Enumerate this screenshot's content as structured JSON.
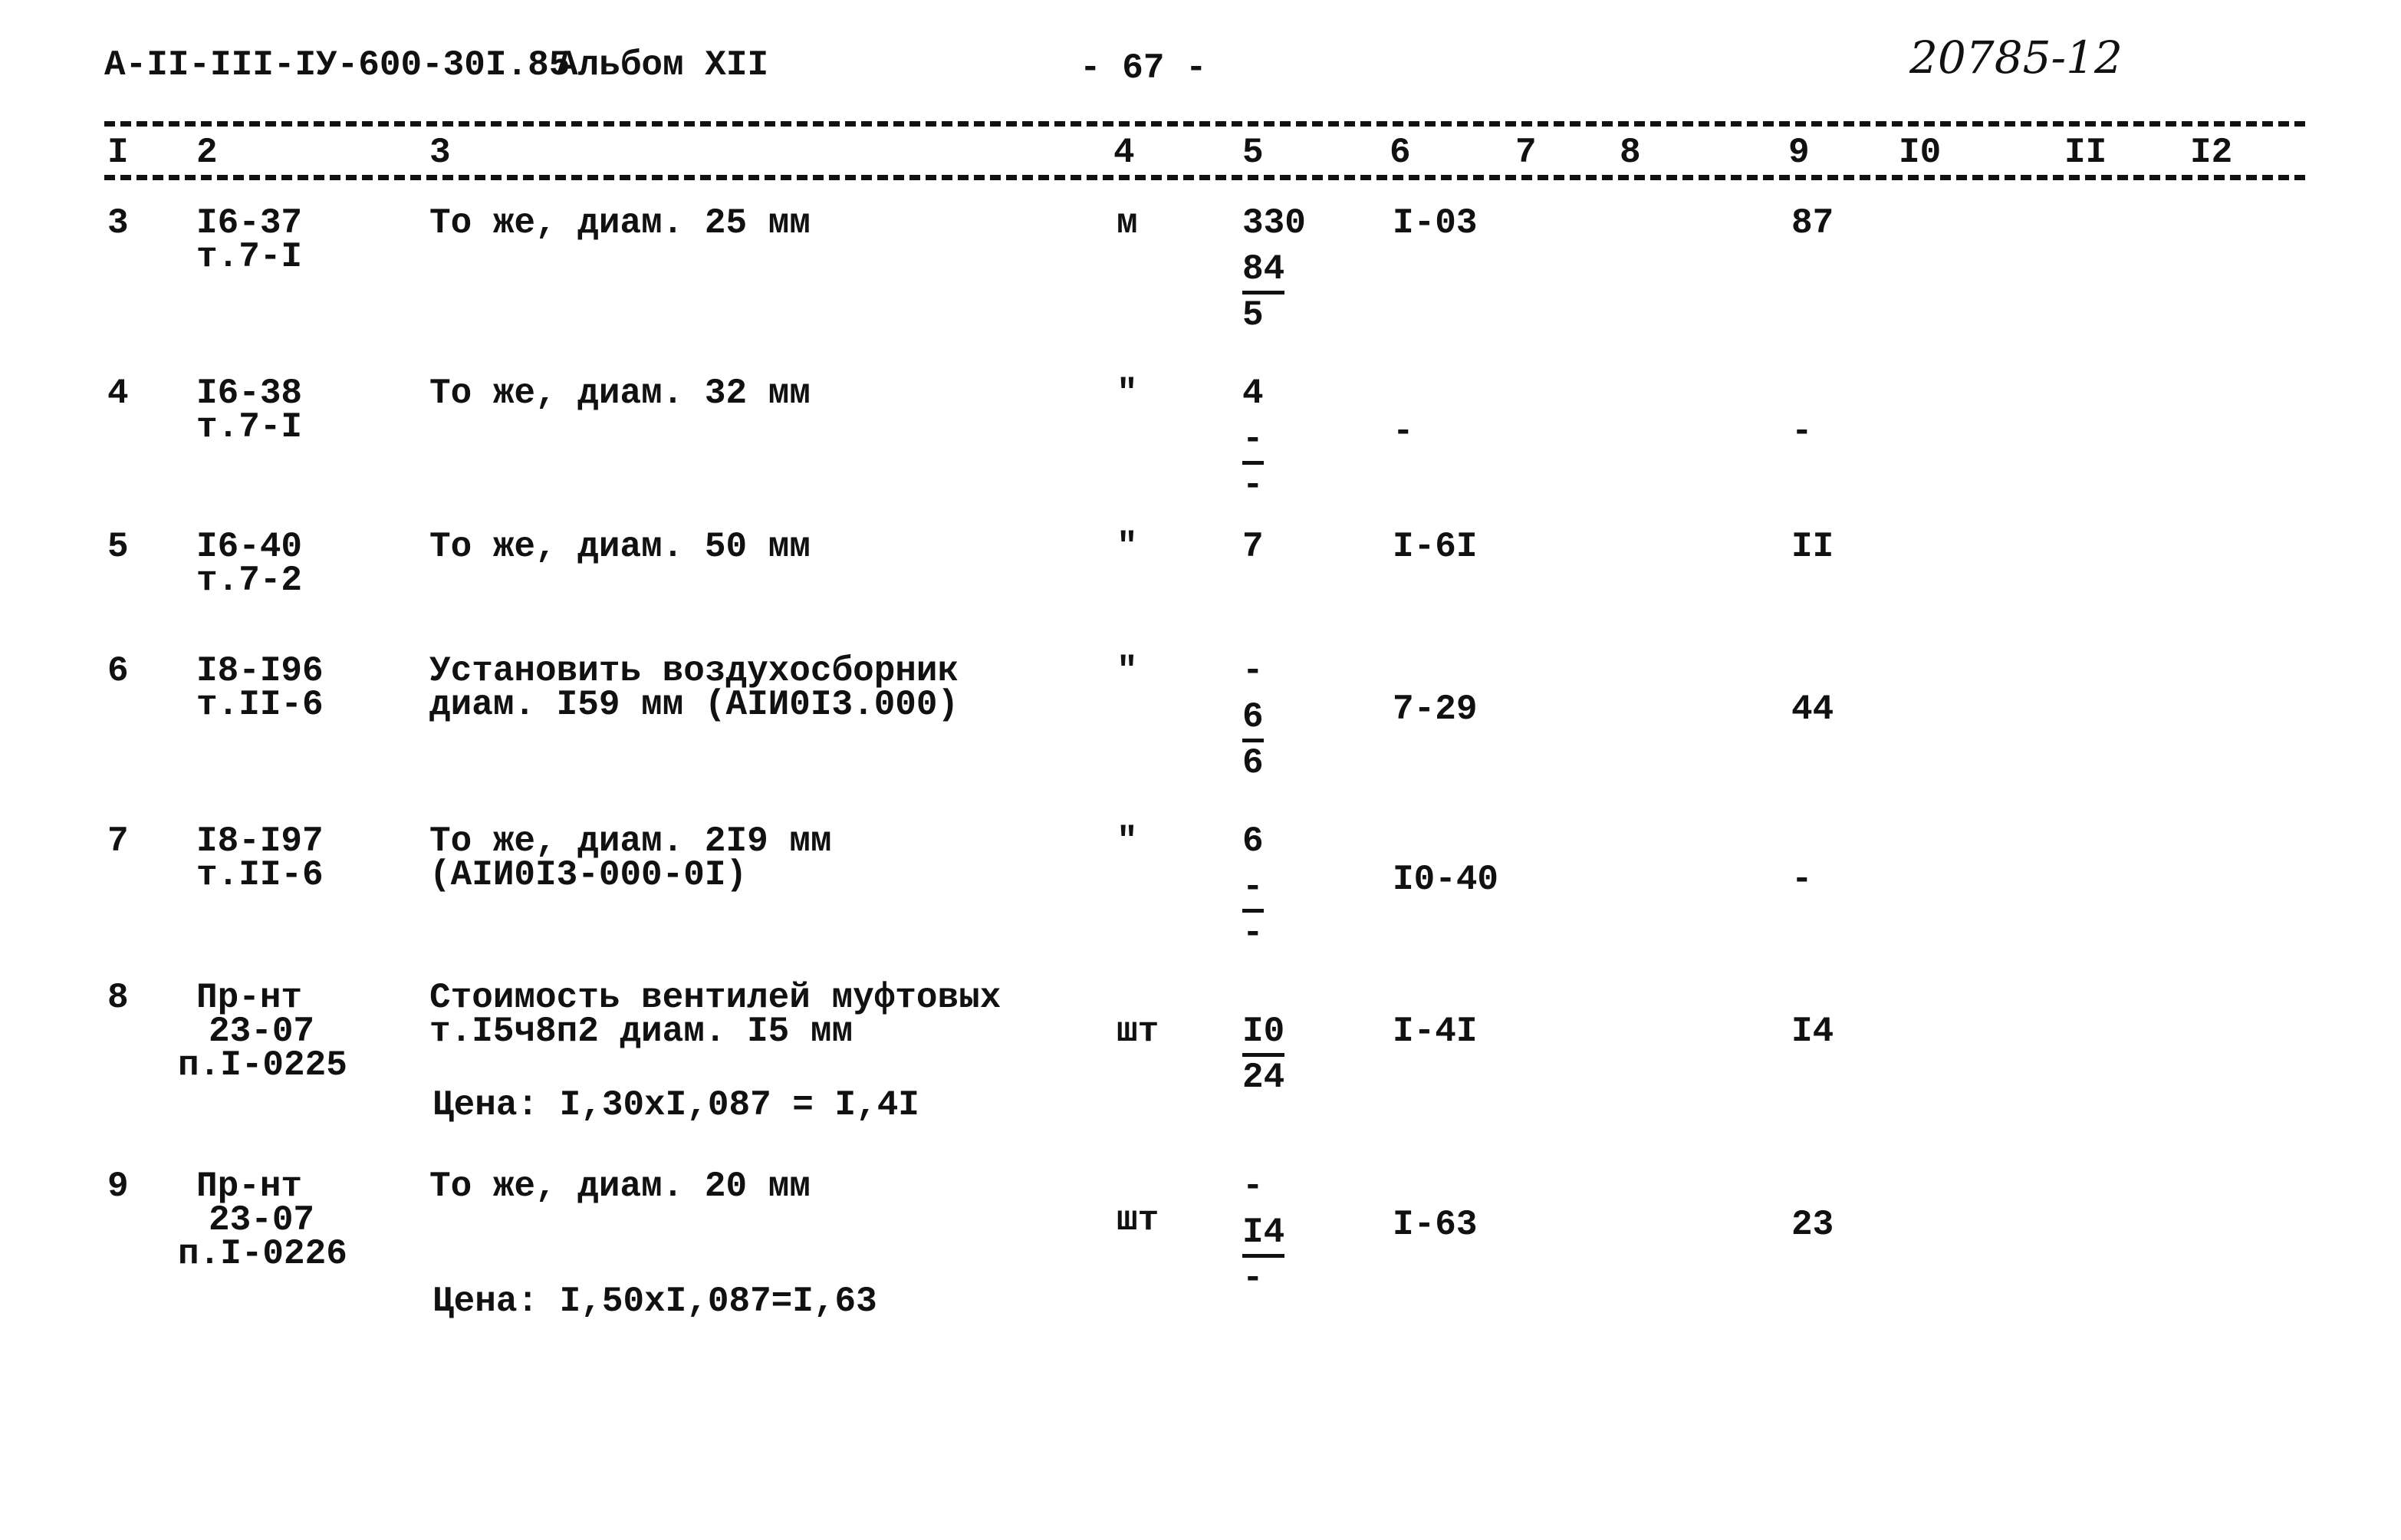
{
  "header": {
    "doc_code": "А-II-III-IУ-600-30I.85",
    "album": "Альбом XII",
    "page": "- 67 -",
    "handwritten_number": "20785-12"
  },
  "columns": [
    "I",
    "2",
    "3",
    "4",
    "5",
    "6",
    "7",
    "8",
    "9",
    "I0",
    "II",
    "I2"
  ],
  "rows": [
    {
      "n": "3",
      "code": [
        "I6-37",
        "т.7-I"
      ],
      "desc": [
        "То же, диам. 25 мм"
      ],
      "unit": "м",
      "c5": [
        {
          "t": "330",
          "u": false
        },
        {
          "t": "84",
          "u": true
        },
        {
          "t": "5",
          "u": false
        }
      ],
      "c6": "I-03",
      "c9": "87"
    },
    {
      "n": "4",
      "code": [
        "I6-38",
        "т.7-I"
      ],
      "desc": [
        "То же, диам. 32 мм"
      ],
      "unit": "\"",
      "c5": [
        {
          "t": "4",
          "u": false
        },
        {
          "t": "-",
          "u": true
        },
        {
          "t": "-",
          "u": false
        }
      ],
      "c6": "-",
      "c9": "-"
    },
    {
      "n": "5",
      "code": [
        "I6-40",
        "т.7-2"
      ],
      "desc": [
        "То же, диам. 50 мм"
      ],
      "unit": "\"",
      "c5": [
        {
          "t": "7",
          "u": false
        }
      ],
      "c6": "I-6I",
      "c9": "II"
    },
    {
      "n": "6",
      "code": [
        "I8-I96",
        "т.II-6"
      ],
      "desc": [
        "Установить воздухосборник",
        "диам. I59 мм (AIИ0I3.000)"
      ],
      "unit": "\"",
      "c5": [
        {
          "t": "-",
          "u": false
        },
        {
          "t": "6",
          "u": true
        },
        {
          "t": "6",
          "u": false
        }
      ],
      "c6": "7-29",
      "c9": "44"
    },
    {
      "n": "7",
      "code": [
        "I8-I97",
        "т.II-6"
      ],
      "desc": [
        "То же, диам. 2I9 мм",
        "(AIИ0I3-000-0I)"
      ],
      "unit": "\"",
      "c5": [
        {
          "t": "6",
          "u": false
        },
        {
          "t": "-",
          "u": true
        },
        {
          "t": "-",
          "u": false
        }
      ],
      "c6": "I0-40",
      "c9": "-"
    },
    {
      "n": "8",
      "code": [
        "Пр-нт",
        "23-07",
        "п.I-0225"
      ],
      "desc": [
        "Стоимость вентилей муфтовых",
        "т.I5ч8п2 диам. I5 мм"
      ],
      "price": "Цена: I,30хI,087 = I,4I",
      "unit": "шт",
      "c5": [
        {
          "t": "I0",
          "u": true
        },
        {
          "t": "24",
          "u": false
        }
      ],
      "c6": "I-4I",
      "c9": "I4"
    },
    {
      "n": "9",
      "code": [
        "Пр-нт",
        "23-07",
        "п.I-0226"
      ],
      "desc": [
        "То же, диам. 20 мм"
      ],
      "price": "Цена: I,50хI,087=I,63",
      "unit": "шт",
      "c5": [
        {
          "t": "-",
          "u": false
        },
        {
          "t": "I4",
          "u": true
        },
        {
          "t": "-",
          "u": false
        }
      ],
      "c6": "I-63",
      "c9": "23"
    }
  ]
}
